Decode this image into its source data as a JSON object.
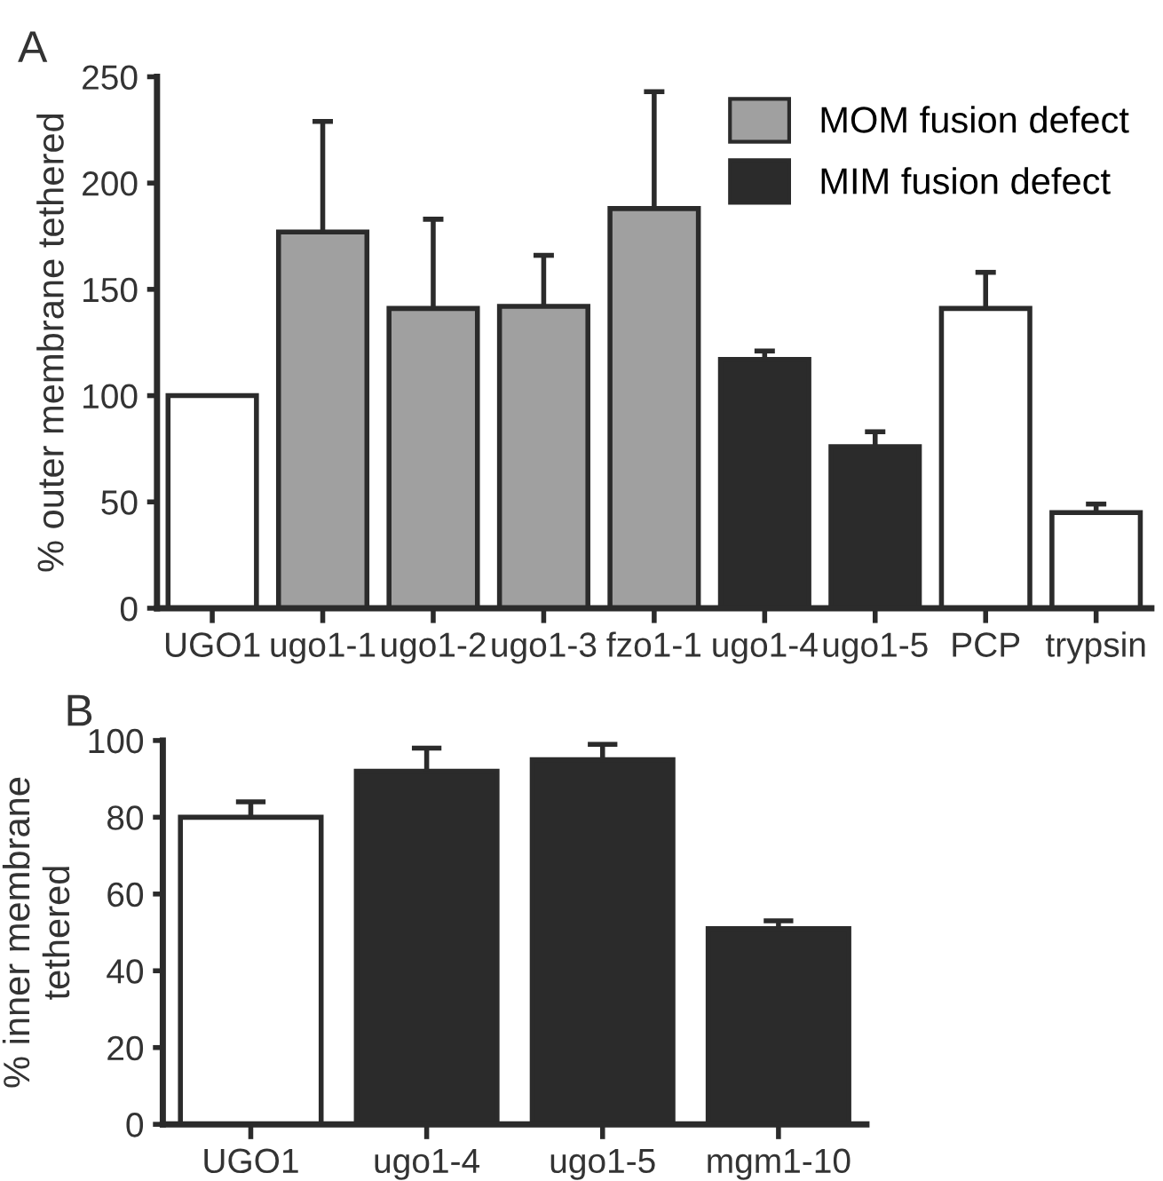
{
  "chart_data": [
    {
      "type": "bar",
      "title": "A",
      "ylabel": "% outer membrane tethered",
      "categories": [
        "UGO1",
        "ugo1-1",
        "ugo1-2",
        "ugo1-3",
        "fzo1-1",
        "ugo1-4",
        "ugo1-5",
        "PCP",
        "trypsin"
      ],
      "series": [
        {
          "color": "#ffffff",
          "values": [
            100,
            null,
            null,
            null,
            null,
            null,
            null,
            141,
            45
          ],
          "errors": [
            null,
            null,
            null,
            null,
            null,
            null,
            null,
            [
              141,
              158
            ],
            [
              45,
              49
            ]
          ]
        },
        {
          "name": "MOM fusion defect",
          "color": "#a0a0a0",
          "values": [
            null,
            177,
            141,
            142,
            188,
            null,
            null,
            null,
            null
          ],
          "errors": [
            null,
            [
              177,
              229
            ],
            [
              141,
              183
            ],
            [
              142,
              166
            ],
            [
              188,
              243
            ],
            null,
            null,
            null,
            null
          ]
        },
        {
          "name": "MIM fusion defect",
          "color": "#2b2b2b",
          "values": [
            null,
            null,
            null,
            null,
            null,
            117,
            76,
            null,
            null
          ],
          "errors": [
            null,
            null,
            null,
            null,
            null,
            [
              117,
              121
            ],
            [
              76,
              83
            ],
            null,
            null
          ]
        }
      ],
      "ylim": [
        0,
        250
      ],
      "yticks": [
        0,
        50,
        100,
        150,
        200,
        250
      ],
      "legend": "top right",
      "grid": false
    },
    {
      "type": "bar",
      "title": "B",
      "ylabel": "% inner membrane\ntethered",
      "categories": [
        "UGO1",
        "ugo1-4",
        "ugo1-5",
        "mgm1-10"
      ],
      "values": [
        80,
        92,
        95,
        51
      ],
      "colors": [
        "#ffffff",
        "#2b2b2b",
        "#2b2b2b",
        "#2b2b2b"
      ],
      "errors": [
        [
          80,
          84
        ],
        [
          92,
          98
        ],
        [
          95,
          99
        ],
        [
          51,
          53
        ]
      ],
      "ylim": [
        0,
        100
      ],
      "yticks": [
        0,
        20,
        40,
        60,
        80,
        100
      ],
      "grid": false
    }
  ]
}
